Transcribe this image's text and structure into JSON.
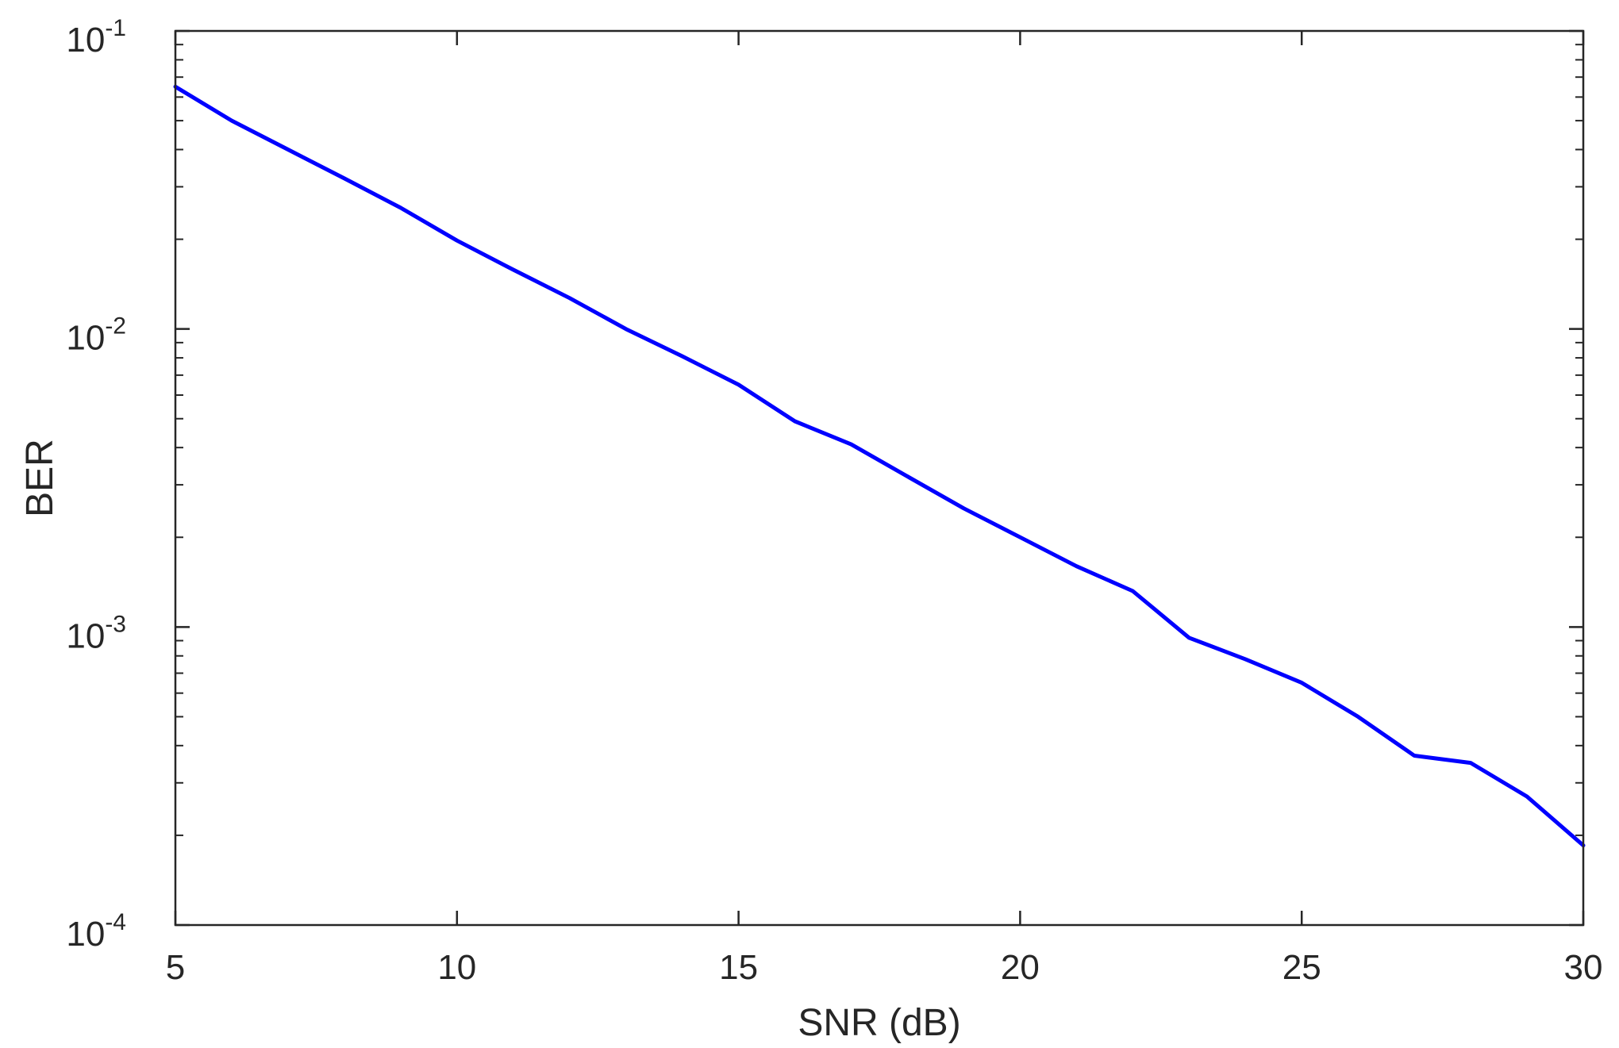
{
  "chart_data": {
    "type": "line",
    "title": "",
    "xlabel": "SNR (dB)",
    "ylabel": "BER",
    "xlim": [
      5,
      30
    ],
    "ylim": [
      0.0001,
      0.1
    ],
    "yscale": "log",
    "grid": false,
    "x_ticks": [
      5,
      10,
      15,
      20,
      25,
      30
    ],
    "y_ticks": [
      {
        "value": 0.1,
        "base": "10",
        "exp": "-1"
      },
      {
        "value": 0.01,
        "base": "10",
        "exp": "-2"
      },
      {
        "value": 0.001,
        "base": "10",
        "exp": "-3"
      },
      {
        "value": 0.0001,
        "base": "10",
        "exp": "-4"
      }
    ],
    "series": [
      {
        "color": "#0000ff",
        "x": [
          5,
          6,
          7,
          8,
          9,
          10,
          11,
          12,
          13,
          14,
          15,
          16,
          17,
          18,
          19,
          20,
          21,
          22,
          23,
          24,
          25,
          26,
          27,
          28,
          29,
          30
        ],
        "y": [
          0.065,
          0.05,
          0.04,
          0.032,
          0.0255,
          0.0198,
          0.0158,
          0.0127,
          0.01,
          0.0081,
          0.0065,
          0.0049,
          0.0041,
          0.0032,
          0.0025,
          0.002,
          0.0016,
          0.00132,
          0.00092,
          0.00078,
          0.00065,
          0.0005,
          0.00037,
          0.00035,
          0.00027,
          0.000185
        ]
      }
    ]
  }
}
